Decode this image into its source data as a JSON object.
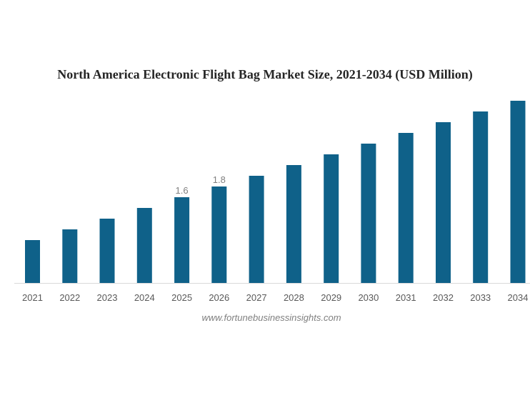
{
  "chart_data": {
    "type": "bar",
    "title": "North America Electronic Flight Bag Market Size, 2021-2034 (USD Million)",
    "xlabel": "",
    "ylabel": "",
    "categories": [
      "2021",
      "2022",
      "2023",
      "2024",
      "2025",
      "2026",
      "2027",
      "2028",
      "2029",
      "2030",
      "2031",
      "2032",
      "2033",
      "2034"
    ],
    "values": [
      0.8,
      1.0,
      1.2,
      1.4,
      1.6,
      1.8,
      2.0,
      2.2,
      2.4,
      2.6,
      2.8,
      3.0,
      3.2,
      3.4
    ],
    "data_labels": [
      null,
      null,
      null,
      null,
      "1.6",
      "1.8",
      null,
      null,
      null,
      null,
      null,
      null,
      null,
      null
    ],
    "ylim": [
      0,
      3.4
    ],
    "grid": false,
    "legend": "none",
    "bar_color": "#0f6189",
    "source": "www.fortunebusinessinsights.com"
  }
}
